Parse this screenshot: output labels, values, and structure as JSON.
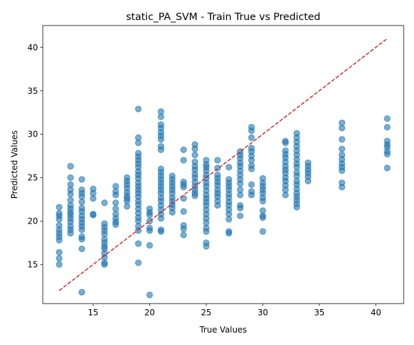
{
  "chart_data": {
    "type": "scatter",
    "title": "static_PA_SVM - Train True vs Predicted",
    "xlabel": "True Values",
    "ylabel": "Predicted Values",
    "xlim": [
      10.55,
      42.45
    ],
    "ylim": [
      10.5,
      42.5
    ],
    "xticks": [
      15,
      20,
      25,
      30,
      35,
      40
    ],
    "yticks": [
      15,
      20,
      25,
      30,
      35,
      40
    ],
    "grid": false,
    "point_color": "#1f77b4",
    "point_alpha": 0.6,
    "reference_line": {
      "x": [
        12,
        41
      ],
      "y": [
        12,
        41
      ],
      "color": "#d62728",
      "style": "dashed"
    },
    "points": [
      [
        12,
        21.6
      ],
      [
        12,
        20.9
      ],
      [
        12,
        20.6
      ],
      [
        12,
        20.2
      ],
      [
        12,
        19.5
      ],
      [
        12,
        19.0
      ],
      [
        12,
        18.6
      ],
      [
        12,
        18.2
      ],
      [
        12,
        17.8
      ],
      [
        12,
        16.4
      ],
      [
        12,
        15.7
      ],
      [
        12,
        15.0
      ],
      [
        13,
        26.3
      ],
      [
        13,
        25.0
      ],
      [
        13,
        24.2
      ],
      [
        13,
        23.6
      ],
      [
        13,
        23.1
      ],
      [
        13,
        22.4
      ],
      [
        13,
        21.8
      ],
      [
        13,
        21.4
      ],
      [
        13,
        21.0
      ],
      [
        13,
        20.7
      ],
      [
        13,
        20.3
      ],
      [
        13,
        19.9
      ],
      [
        13,
        19.4
      ],
      [
        13,
        19.0
      ],
      [
        13,
        18.6
      ],
      [
        14,
        24.8
      ],
      [
        14,
        23.6
      ],
      [
        14,
        23.2
      ],
      [
        14,
        22.8
      ],
      [
        14,
        22.2
      ],
      [
        14,
        21.5
      ],
      [
        14,
        21.1
      ],
      [
        14,
        20.6
      ],
      [
        14,
        20.2
      ],
      [
        14,
        19.8
      ],
      [
        14,
        19.4
      ],
      [
        14,
        19.0
      ],
      [
        14,
        18.2
      ],
      [
        14,
        17.9
      ],
      [
        14,
        16.8
      ],
      [
        14,
        11.8
      ],
      [
        15,
        23.7
      ],
      [
        15,
        23.2
      ],
      [
        15,
        22.6
      ],
      [
        15,
        20.8
      ],
      [
        15,
        20.7
      ],
      [
        16,
        22.1
      ],
      [
        16,
        19.7
      ],
      [
        16,
        19.3
      ],
      [
        16,
        18.9
      ],
      [
        16,
        18.5
      ],
      [
        16,
        17.9
      ],
      [
        16,
        17.5
      ],
      [
        16,
        17.1
      ],
      [
        16,
        16.8
      ],
      [
        16,
        16.3
      ],
      [
        16,
        15.8
      ],
      [
        16,
        15.2
      ],
      [
        16,
        15.0
      ],
      [
        17,
        24.0
      ],
      [
        17,
        23.4
      ],
      [
        17,
        23.0
      ],
      [
        17,
        22.1
      ],
      [
        17,
        21.4
      ],
      [
        17,
        20.8
      ],
      [
        17,
        20.3
      ],
      [
        17,
        19.9
      ],
      [
        17,
        19.6
      ],
      [
        18,
        25.0
      ],
      [
        18,
        24.6
      ],
      [
        18,
        24.2
      ],
      [
        18,
        23.8
      ],
      [
        18,
        23.3
      ],
      [
        18,
        22.9
      ],
      [
        18,
        22.6
      ],
      [
        18,
        22.3
      ],
      [
        18,
        21.7
      ],
      [
        19,
        32.9
      ],
      [
        19,
        29.6
      ],
      [
        19,
        29.0
      ],
      [
        19,
        27.8
      ],
      [
        19,
        27.4
      ],
      [
        19,
        27.0
      ],
      [
        19,
        26.6
      ],
      [
        19,
        26.2
      ],
      [
        19,
        25.7
      ],
      [
        19,
        25.3
      ],
      [
        19,
        24.9
      ],
      [
        19,
        24.4
      ],
      [
        19,
        24.0
      ],
      [
        19,
        23.6
      ],
      [
        19,
        23.2
      ],
      [
        19,
        22.8
      ],
      [
        19,
        22.3
      ],
      [
        19,
        21.9
      ],
      [
        19,
        21.4
      ],
      [
        19,
        20.9
      ],
      [
        19,
        20.4
      ],
      [
        19,
        20.0
      ],
      [
        19,
        19.4
      ],
      [
        19,
        18.9
      ],
      [
        19,
        17.4
      ],
      [
        19,
        15.2
      ],
      [
        20,
        21.4
      ],
      [
        20,
        21.0
      ],
      [
        20,
        20.7
      ],
      [
        20,
        20.0
      ],
      [
        20,
        19.2
      ],
      [
        20,
        18.9
      ],
      [
        20,
        17.2
      ],
      [
        20,
        11.5
      ],
      [
        21,
        32.6
      ],
      [
        21,
        32.0
      ],
      [
        21,
        31.1
      ],
      [
        21,
        30.7
      ],
      [
        21,
        30.2
      ],
      [
        21,
        29.8
      ],
      [
        21,
        29.4
      ],
      [
        21,
        28.6
      ],
      [
        21,
        28.2
      ],
      [
        21,
        26.0
      ],
      [
        21,
        25.6
      ],
      [
        21,
        25.2
      ],
      [
        21,
        24.8
      ],
      [
        21,
        24.4
      ],
      [
        21,
        24.0
      ],
      [
        21,
        23.6
      ],
      [
        21,
        23.2
      ],
      [
        21,
        22.7
      ],
      [
        21,
        22.3
      ],
      [
        21,
        21.8
      ],
      [
        21,
        21.3
      ],
      [
        21,
        20.8
      ],
      [
        21,
        20.3
      ],
      [
        21,
        19.0
      ],
      [
        21,
        18.8
      ],
      [
        22,
        25.2
      ],
      [
        22,
        24.8
      ],
      [
        22,
        24.4
      ],
      [
        22,
        24.0
      ],
      [
        22,
        23.6
      ],
      [
        22,
        23.2
      ],
      [
        22,
        22.7
      ],
      [
        22,
        22.3
      ],
      [
        22,
        21.9
      ],
      [
        22,
        21.5
      ],
      [
        22,
        21.0
      ],
      [
        23,
        28.2
      ],
      [
        23,
        27.0
      ],
      [
        23,
        24.5
      ],
      [
        23,
        24.2
      ],
      [
        23,
        23.9
      ],
      [
        23,
        22.6
      ],
      [
        23,
        21.1
      ],
      [
        23,
        19.5
      ],
      [
        23,
        19.1
      ],
      [
        23,
        18.4
      ],
      [
        24,
        28.8
      ],
      [
        24,
        28.3
      ],
      [
        24,
        27.6
      ],
      [
        24,
        26.8
      ],
      [
        24,
        26.3
      ],
      [
        24,
        25.9
      ],
      [
        24,
        25.4
      ],
      [
        24,
        25.0
      ],
      [
        24,
        24.5
      ],
      [
        24,
        24.0
      ],
      [
        24,
        23.6
      ],
      [
        24,
        23.2
      ],
      [
        24,
        22.9
      ],
      [
        25,
        27.0
      ],
      [
        25,
        26.5
      ],
      [
        25,
        26.2
      ],
      [
        25,
        25.8
      ],
      [
        25,
        25.3
      ],
      [
        25,
        24.9
      ],
      [
        25,
        24.4
      ],
      [
        25,
        24.0
      ],
      [
        25,
        23.5
      ],
      [
        25,
        23.0
      ],
      [
        25,
        22.6
      ],
      [
        25,
        22.2
      ],
      [
        25,
        21.8
      ],
      [
        25,
        21.3
      ],
      [
        25,
        20.8
      ],
      [
        25,
        20.3
      ],
      [
        25,
        19.8
      ],
      [
        25,
        19.2
      ],
      [
        25,
        18.8
      ],
      [
        25,
        17.5
      ],
      [
        25,
        17.1
      ],
      [
        26,
        27.0
      ],
      [
        26,
        26.1
      ],
      [
        26,
        25.3
      ],
      [
        26,
        24.9
      ],
      [
        26,
        24.5
      ],
      [
        26,
        24.1
      ],
      [
        26,
        23.6
      ],
      [
        26,
        23.2
      ],
      [
        26,
        22.8
      ],
      [
        26,
        22.3
      ],
      [
        26,
        21.8
      ],
      [
        27,
        26.2
      ],
      [
        27,
        24.8
      ],
      [
        27,
        24.4
      ],
      [
        27,
        24.0
      ],
      [
        27,
        23.6
      ],
      [
        27,
        23.1
      ],
      [
        27,
        22.7
      ],
      [
        27,
        22.2
      ],
      [
        27,
        21.8
      ],
      [
        27,
        21.3
      ],
      [
        27,
        20.8
      ],
      [
        27,
        20.2
      ],
      [
        27,
        18.8
      ],
      [
        27,
        18.6
      ],
      [
        28,
        28.0
      ],
      [
        28,
        27.6
      ],
      [
        28,
        27.2
      ],
      [
        28,
        26.7
      ],
      [
        28,
        26.3
      ],
      [
        28,
        25.8
      ],
      [
        28,
        25.3
      ],
      [
        28,
        24.8
      ],
      [
        28,
        24.3
      ],
      [
        28,
        23.6
      ],
      [
        28,
        23.0
      ],
      [
        28,
        21.8
      ],
      [
        28,
        21.5
      ],
      [
        28,
        20.6
      ],
      [
        29,
        30.8
      ],
      [
        29,
        30.4
      ],
      [
        29,
        29.6
      ],
      [
        29,
        28.4
      ],
      [
        29,
        28.0
      ],
      [
        29,
        27.5
      ],
      [
        29,
        27.0
      ],
      [
        29,
        26.4
      ],
      [
        29,
        26.0
      ],
      [
        29,
        24.2
      ],
      [
        29,
        23.4
      ],
      [
        29,
        23.0
      ],
      [
        30,
        24.9
      ],
      [
        30,
        24.4
      ],
      [
        30,
        24.0
      ],
      [
        30,
        23.6
      ],
      [
        30,
        23.2
      ],
      [
        30,
        22.7
      ],
      [
        30,
        22.3
      ],
      [
        30,
        21.2
      ],
      [
        30,
        20.6
      ],
      [
        30,
        20.4
      ],
      [
        30,
        18.8
      ],
      [
        32,
        29.2
      ],
      [
        32,
        29.0
      ],
      [
        32,
        28.1
      ],
      [
        32,
        27.7
      ],
      [
        32,
        27.3
      ],
      [
        32,
        26.8
      ],
      [
        32,
        26.3
      ],
      [
        32,
        25.9
      ],
      [
        32,
        25.5
      ],
      [
        32,
        25.0
      ],
      [
        32,
        24.6
      ],
      [
        32,
        24.1
      ],
      [
        32,
        23.6
      ],
      [
        32,
        23.0
      ],
      [
        33,
        30.1
      ],
      [
        33,
        29.6
      ],
      [
        33,
        29.1
      ],
      [
        33,
        28.6
      ],
      [
        33,
        28.1
      ],
      [
        33,
        27.6
      ],
      [
        33,
        27.1
      ],
      [
        33,
        26.6
      ],
      [
        33,
        26.2
      ],
      [
        33,
        25.6
      ],
      [
        33,
        25.2
      ],
      [
        33,
        24.6
      ],
      [
        33,
        24.2
      ],
      [
        33,
        23.7
      ],
      [
        33,
        23.2
      ],
      [
        33,
        22.8
      ],
      [
        33,
        22.4
      ],
      [
        33,
        22.0
      ],
      [
        33,
        21.6
      ],
      [
        34,
        26.7
      ],
      [
        34,
        26.3
      ],
      [
        34,
        25.9
      ],
      [
        34,
        25.5
      ],
      [
        34,
        25.1
      ],
      [
        34,
        24.6
      ],
      [
        37,
        31.3
      ],
      [
        37,
        30.7
      ],
      [
        37,
        29.4
      ],
      [
        37,
        28.3
      ],
      [
        37,
        27.6
      ],
      [
        37,
        27.1
      ],
      [
        37,
        26.6
      ],
      [
        37,
        26.2
      ],
      [
        37,
        25.8
      ],
      [
        37,
        24.4
      ],
      [
        37,
        23.9
      ],
      [
        41,
        31.8
      ],
      [
        41,
        30.8
      ],
      [
        41,
        29.2
      ],
      [
        41,
        28.8
      ],
      [
        41,
        28.5
      ],
      [
        41,
        28.0
      ],
      [
        41,
        27.7
      ],
      [
        41,
        26.1
      ]
    ]
  }
}
